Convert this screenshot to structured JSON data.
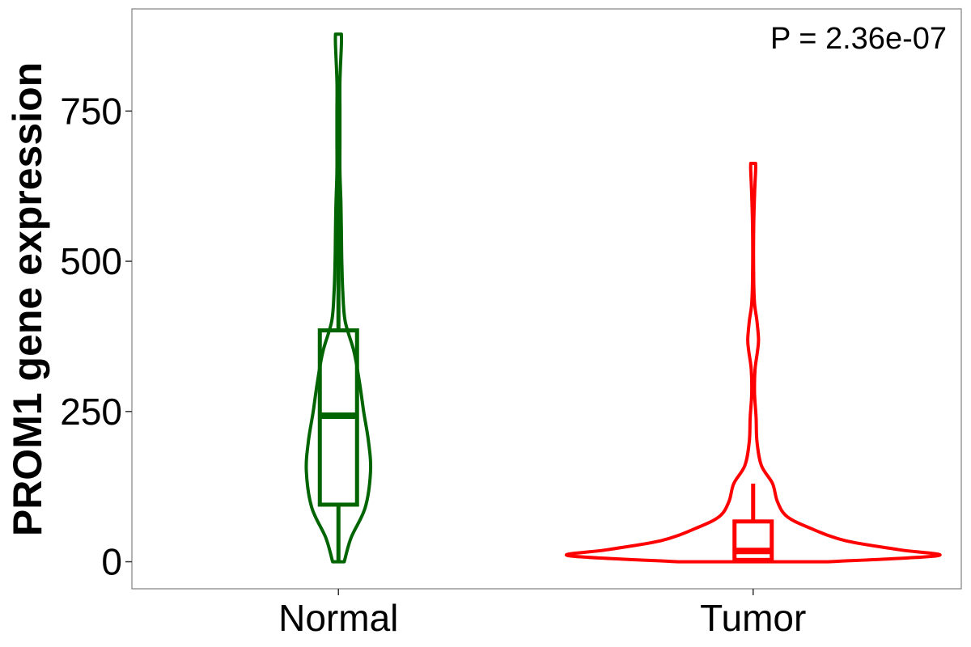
{
  "chart_data": {
    "type": "violin",
    "title": "",
    "xlabel": "",
    "ylabel": "PROM1 gene expression",
    "ylim": [
      -45,
      920
    ],
    "yticks": [
      0,
      250,
      500,
      750
    ],
    "annotation": "P = 2.36e-07",
    "categories": [
      "Normal",
      "Tumor"
    ],
    "grid": false,
    "series": [
      {
        "category": "Normal",
        "color": "#006400",
        "box": {
          "lower_whisker": 0,
          "q1": 95,
          "median": 243,
          "q3": 385,
          "upper_whisker": 775
        },
        "violin_range": [
          0,
          878
        ],
        "density": [
          [
            0,
            0.12
          ],
          [
            40,
            0.26
          ],
          [
            90,
            0.55
          ],
          [
            150,
            0.66
          ],
          [
            200,
            0.62
          ],
          [
            250,
            0.52
          ],
          [
            300,
            0.43
          ],
          [
            350,
            0.32
          ],
          [
            400,
            0.14
          ],
          [
            450,
            0.09
          ],
          [
            500,
            0.07
          ],
          [
            550,
            0.06
          ],
          [
            600,
            0.05
          ],
          [
            650,
            0.03
          ],
          [
            700,
            0.03
          ],
          [
            750,
            0.03
          ],
          [
            800,
            0.03
          ],
          [
            860,
            0.06
          ],
          [
            878,
            0.06
          ]
        ]
      },
      {
        "category": "Tumor",
        "color": "#ff0000",
        "box": {
          "lower_whisker": 0,
          "q1": 3,
          "median": 18,
          "q3": 67,
          "upper_whisker": 130
        },
        "violin_range": [
          0,
          663
        ],
        "density": [
          [
            0,
            1.55
          ],
          [
            10,
            3.8
          ],
          [
            20,
            3.0
          ],
          [
            35,
            1.9
          ],
          [
            55,
            1.2
          ],
          [
            75,
            0.7
          ],
          [
            100,
            0.5
          ],
          [
            130,
            0.4
          ],
          [
            160,
            0.17
          ],
          [
            200,
            0.08
          ],
          [
            240,
            0.06
          ],
          [
            280,
            0.03
          ],
          [
            320,
            0.04
          ],
          [
            350,
            0.09
          ],
          [
            370,
            0.11
          ],
          [
            400,
            0.08
          ],
          [
            430,
            0.03
          ],
          [
            480,
            0.01
          ],
          [
            550,
            0.01
          ],
          [
            610,
            0.03
          ],
          [
            650,
            0.05
          ],
          [
            663,
            0.05
          ]
        ]
      }
    ]
  }
}
